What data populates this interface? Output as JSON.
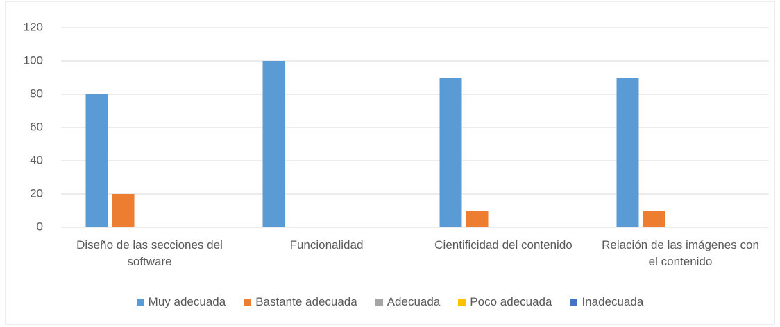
{
  "chart_data": {
    "type": "bar",
    "categories": [
      "Diseño de las secciones del software",
      "Funcionalidad",
      "Cientificidad del contenido",
      "Relación de las imágenes con el contenido"
    ],
    "series": [
      {
        "name": "Muy adecuada",
        "color": "#5b9bd5",
        "values": [
          80,
          100,
          90,
          90
        ]
      },
      {
        "name": "Bastante adecuada",
        "color": "#ed7d31",
        "values": [
          20,
          0,
          10,
          10
        ]
      },
      {
        "name": "Adecuada",
        "color": "#a5a5a5",
        "values": [
          0,
          0,
          0,
          0
        ]
      },
      {
        "name": "Poco adecuada",
        "color": "#ffc000",
        "values": [
          0,
          0,
          0,
          0
        ]
      },
      {
        "name": "Inadecuada",
        "color": "#4472c4",
        "values": [
          0,
          0,
          0,
          0
        ]
      }
    ],
    "ylim": [
      0,
      120
    ],
    "yticks": [
      0,
      20,
      40,
      60,
      80,
      100,
      120
    ],
    "grid": true,
    "legend": "bottom"
  }
}
